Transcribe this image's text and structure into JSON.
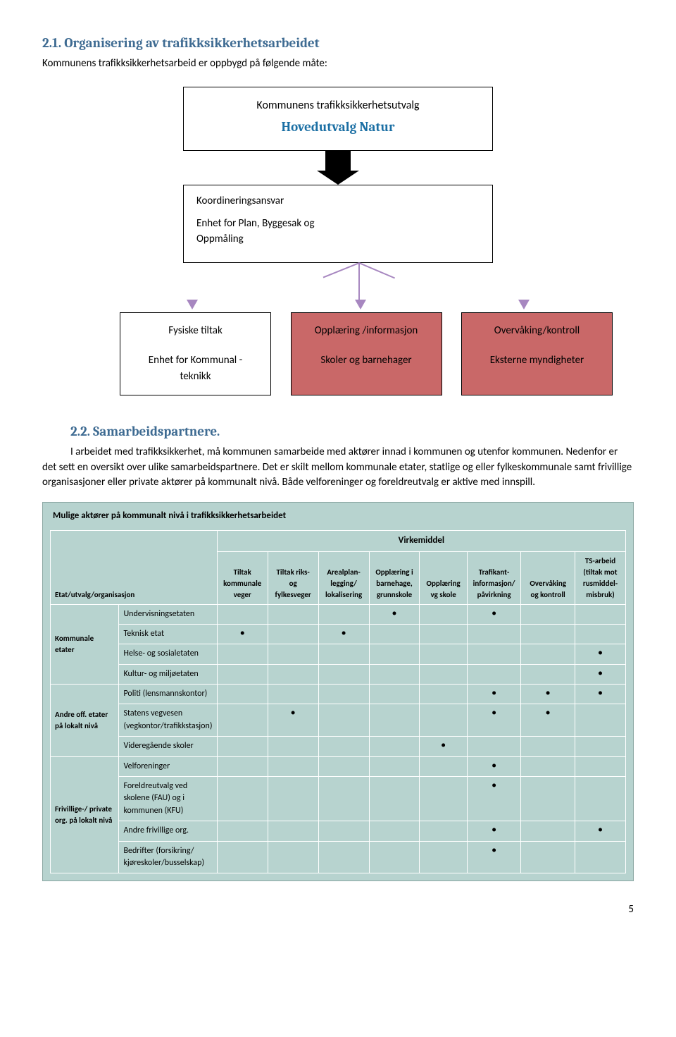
{
  "colors": {
    "heading": "#3e6b92",
    "title_accent": "#1b6fa4",
    "connector": "#a787c0",
    "chart_box_fill": "#c96868",
    "table_bg": "#b7d3cf",
    "table_border": "#ffffff"
  },
  "section21": {
    "number_title": "2.1.   Organisering av trafikksikkerhetsarbeidet",
    "lead": "Kommunens trafikksikkerhetsarbeid er oppbygd på følgende måte:"
  },
  "orgchart": {
    "top": {
      "line1": "Kommunens trafikksikkerhetsutvalg",
      "line2": "Hovedutvalg Natur"
    },
    "mid": {
      "line1": "Koordineringsansvar",
      "line2": "Enhet for Plan, Byggesak og",
      "line3": "Oppmåling"
    },
    "bottom": [
      {
        "line1": "Fysiske tiltak",
        "line2": "Enhet for Kommunal -",
        "line3": "teknikk",
        "fill": "#ffffff"
      },
      {
        "line1": "Opplæring /informasjon",
        "line2": "Skoler og barnehager",
        "line3": "",
        "fill": "#c96868"
      },
      {
        "line1": "Overvåking/kontroll",
        "line2": "Eksterne myndigheter",
        "line3": "",
        "fill": "#c96868"
      }
    ]
  },
  "section22": {
    "number_title": "2.2.   Samarbeidspartnere.",
    "body": "I arbeidet med trafikksikkerhet, må kommunen samarbeide med aktører innad i kommunen og utenfor kommunen. Nedenfor er det sett en oversikt over ulike samarbeidspartnere. Det er skilt mellom kommunale etater, statlige og eller fylkeskommunale samt frivillige organisasjoner eller private aktører på kommunalt nivå. Både velforeninger og foreldreutvalg er aktive med innspill."
  },
  "actors_table": {
    "caption": "Mulige aktører på kommunalt nivå i trafikksikkerhetsarbeidet",
    "group_heading": "Virkemiddel",
    "row_header": "Etat/utvalg/organisasjon",
    "columns": [
      "Tiltak kommunale veger",
      "Tiltak riks- og fylkesveger",
      "Arealplan­legging/ lokalisering",
      "Opplæring i barnehage, grunnskole",
      "Opplæring vg skole",
      "Trafikant­informasjon/ påvirkning",
      "Overvåking og kontroll",
      "TS-arbeid (tiltak mot rusmiddel­misbruk)"
    ],
    "col_widths": [
      "84",
      "120",
      "62",
      "62",
      "62",
      "62",
      "58",
      "66",
      "66",
      "62"
    ],
    "row_groups": [
      {
        "label": "Kommunale etater",
        "rows": [
          {
            "name": "Undervisningsetaten",
            "marks": [
              0,
              0,
              0,
              1,
              0,
              1,
              0,
              0
            ]
          },
          {
            "name": "Teknisk etat",
            "marks": [
              1,
              0,
              1,
              0,
              0,
              0,
              0,
              0
            ]
          },
          {
            "name": "Helse- og sosialetaten",
            "marks": [
              0,
              0,
              0,
              0,
              0,
              0,
              0,
              1
            ]
          },
          {
            "name": "Kultur- og miljøetaten",
            "marks": [
              0,
              0,
              0,
              0,
              0,
              0,
              0,
              1
            ]
          }
        ]
      },
      {
        "label": "Andre off. etater på lokalt nivå",
        "rows": [
          {
            "name": "Politi (lensmannskontor)",
            "marks": [
              0,
              0,
              0,
              0,
              0,
              1,
              1,
              1
            ]
          },
          {
            "name": "Statens vegvesen (vegkontor/trafikkstasjon)",
            "marks": [
              0,
              1,
              0,
              0,
              0,
              1,
              1,
              0
            ]
          },
          {
            "name": "Videregående skoler",
            "marks": [
              0,
              0,
              0,
              0,
              1,
              0,
              0,
              0
            ]
          }
        ]
      },
      {
        "label": "Frivillige-/ private org. på lokalt nivå",
        "rows": [
          {
            "name": "Velforeninger",
            "marks": [
              0,
              0,
              0,
              0,
              0,
              1,
              0,
              0
            ]
          },
          {
            "name": "Foreldreutvalg ved skolene (FAU) og i kommunen (KFU)",
            "marks": [
              0,
              0,
              0,
              0,
              0,
              1,
              0,
              0
            ]
          },
          {
            "name": "Andre frivillige org.",
            "marks": [
              0,
              0,
              0,
              0,
              0,
              1,
              0,
              1
            ]
          },
          {
            "name": "Bedrifter (forsikring/ kjøreskoler/busselskap)",
            "marks": [
              0,
              0,
              0,
              0,
              0,
              1,
              0,
              0
            ]
          }
        ]
      }
    ]
  },
  "page_number": "5"
}
